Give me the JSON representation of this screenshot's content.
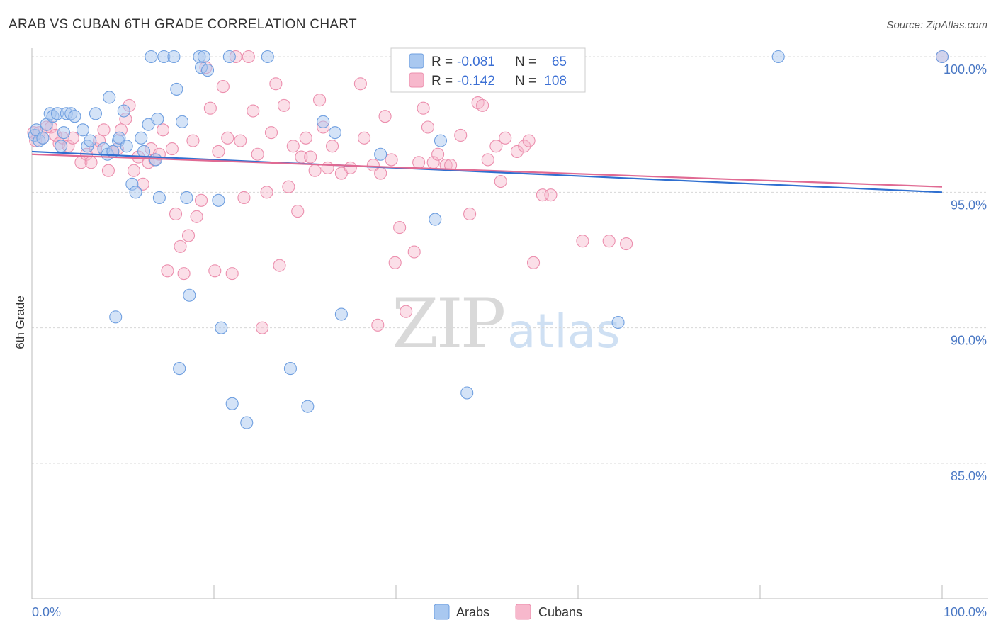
{
  "header": {
    "title": "ARAB VS CUBAN 6TH GRADE CORRELATION CHART",
    "source": "Source: ZipAtlas.com"
  },
  "watermark": {
    "zip": "ZIP",
    "atlas": "atlas"
  },
  "legend": {
    "r_label": "R =",
    "n_label": "N =",
    "arabs": {
      "r": "-0.081",
      "n": "65"
    },
    "cubans": {
      "r": "-0.142",
      "n": "108"
    }
  },
  "bottom_legend": {
    "arabs": "Arabs",
    "cubans": "Cubans"
  },
  "colors": {
    "arabs_fill": "#a9c8f0",
    "arabs_stroke": "#6f9fe0",
    "arabs_line": "#2f6fd0",
    "cubans_fill": "#f7b8cc",
    "cubans_stroke": "#ec8fae",
    "cubans_line": "#e06a93",
    "tick_text": "#4a78c4",
    "grid": "#d8d8d8"
  },
  "chart_data": {
    "type": "scatter",
    "title": "ARAB VS CUBAN 6TH GRADE CORRELATION CHART",
    "xlabel": "",
    "ylabel": "6th Grade",
    "xlim": [
      0,
      100
    ],
    "ylim": [
      80.2,
      100.8
    ],
    "x_tick_labels": [
      "0.0%",
      "100.0%"
    ],
    "y_ticks": [
      85,
      90,
      95,
      100
    ],
    "y_tick_labels": [
      "85.0%",
      "90.0%",
      "95.0%",
      "100.0%"
    ],
    "grid": true,
    "legend_position": "top-center",
    "series": [
      {
        "name": "Arabs",
        "r": -0.081,
        "n": 65,
        "trend": {
          "x": [
            0,
            100
          ],
          "y": [
            96.5,
            95.0
          ]
        },
        "points": [
          [
            0.3,
            97.1
          ],
          [
            0.5,
            97.3
          ],
          [
            0.8,
            96.9
          ],
          [
            1.2,
            97.0
          ],
          [
            1.6,
            97.5
          ],
          [
            2.0,
            97.9
          ],
          [
            2.3,
            97.8
          ],
          [
            2.8,
            97.9
          ],
          [
            3.2,
            96.7
          ],
          [
            3.5,
            97.2
          ],
          [
            3.8,
            97.9
          ],
          [
            4.3,
            97.9
          ],
          [
            4.7,
            97.8
          ],
          [
            5.6,
            97.3
          ],
          [
            6.1,
            96.7
          ],
          [
            6.4,
            96.9
          ],
          [
            7.0,
            97.9
          ],
          [
            7.9,
            96.6
          ],
          [
            8.3,
            96.4
          ],
          [
            8.5,
            98.5
          ],
          [
            8.9,
            96.5
          ],
          [
            9.5,
            96.9
          ],
          [
            9.6,
            97.0
          ],
          [
            10.1,
            98.0
          ],
          [
            10.4,
            96.7
          ],
          [
            11.0,
            95.3
          ],
          [
            11.4,
            95.0
          ],
          [
            12.0,
            97.0
          ],
          [
            12.3,
            96.5
          ],
          [
            12.8,
            97.5
          ],
          [
            13.1,
            100.0
          ],
          [
            13.6,
            96.2
          ],
          [
            13.8,
            97.7
          ],
          [
            14.0,
            94.8
          ],
          [
            14.5,
            100.0
          ],
          [
            15.6,
            100.0
          ],
          [
            15.9,
            98.8
          ],
          [
            16.5,
            97.6
          ],
          [
            17.0,
            94.8
          ],
          [
            17.3,
            91.2
          ],
          [
            18.4,
            100.0
          ],
          [
            18.6,
            99.6
          ],
          [
            18.9,
            100.0
          ],
          [
            19.3,
            99.5
          ],
          [
            20.5,
            94.7
          ],
          [
            20.8,
            90.0
          ],
          [
            21.7,
            100.0
          ],
          [
            22.0,
            87.2
          ],
          [
            23.6,
            86.5
          ],
          [
            25.9,
            100.0
          ],
          [
            28.4,
            88.5
          ],
          [
            30.3,
            87.1
          ],
          [
            32.0,
            97.6
          ],
          [
            33.3,
            97.2
          ],
          [
            34.0,
            90.5
          ],
          [
            38.3,
            96.4
          ],
          [
            44.3,
            94.0
          ],
          [
            44.9,
            96.9
          ],
          [
            47.8,
            87.6
          ],
          [
            57.6,
            100.0
          ],
          [
            64.4,
            90.2
          ],
          [
            82.0,
            100.0
          ],
          [
            100.0,
            100.0
          ],
          [
            16.2,
            88.5
          ],
          [
            9.2,
            90.4
          ]
        ]
      },
      {
        "name": "Cubans",
        "r": -0.142,
        "n": 108,
        "trend": {
          "x": [
            0,
            100
          ],
          "y": [
            96.4,
            95.2
          ]
        },
        "points": [
          [
            0.2,
            97.2
          ],
          [
            0.4,
            96.9
          ],
          [
            0.8,
            97.2
          ],
          [
            1.2,
            97.0
          ],
          [
            1.6,
            97.4
          ],
          [
            2.1,
            97.4
          ],
          [
            2.6,
            97.1
          ],
          [
            3.0,
            96.8
          ],
          [
            3.4,
            97.0
          ],
          [
            4.0,
            96.7
          ],
          [
            4.5,
            97.0
          ],
          [
            5.4,
            96.1
          ],
          [
            6.0,
            96.4
          ],
          [
            6.5,
            96.1
          ],
          [
            7.0,
            96.6
          ],
          [
            7.4,
            96.9
          ],
          [
            7.9,
            97.3
          ],
          [
            8.4,
            95.8
          ],
          [
            8.9,
            96.5
          ],
          [
            9.4,
            96.6
          ],
          [
            9.8,
            97.3
          ],
          [
            10.3,
            97.7
          ],
          [
            10.7,
            98.2
          ],
          [
            11.2,
            95.8
          ],
          [
            11.7,
            96.3
          ],
          [
            12.2,
            95.3
          ],
          [
            12.8,
            96.1
          ],
          [
            13.1,
            96.6
          ],
          [
            13.5,
            96.2
          ],
          [
            14.0,
            96.4
          ],
          [
            14.4,
            97.3
          ],
          [
            14.9,
            92.1
          ],
          [
            15.4,
            96.6
          ],
          [
            15.8,
            94.2
          ],
          [
            16.3,
            93.0
          ],
          [
            16.7,
            92.0
          ],
          [
            17.2,
            93.4
          ],
          [
            17.7,
            96.9
          ],
          [
            18.1,
            94.1
          ],
          [
            18.6,
            94.7
          ],
          [
            19.1,
            99.6
          ],
          [
            19.6,
            98.1
          ],
          [
            20.1,
            92.1
          ],
          [
            20.5,
            96.5
          ],
          [
            21.0,
            98.9
          ],
          [
            21.5,
            97.0
          ],
          [
            22.0,
            92.0
          ],
          [
            22.4,
            100.0
          ],
          [
            22.9,
            96.9
          ],
          [
            23.3,
            94.8
          ],
          [
            23.8,
            100.0
          ],
          [
            24.3,
            98.0
          ],
          [
            24.8,
            96.4
          ],
          [
            25.3,
            90.0
          ],
          [
            25.8,
            95.0
          ],
          [
            26.3,
            97.2
          ],
          [
            26.8,
            99.0
          ],
          [
            27.2,
            92.3
          ],
          [
            27.7,
            98.2
          ],
          [
            28.2,
            95.2
          ],
          [
            28.7,
            96.7
          ],
          [
            29.2,
            94.3
          ],
          [
            29.6,
            96.3
          ],
          [
            30.1,
            97.0
          ],
          [
            30.6,
            96.3
          ],
          [
            31.1,
            95.8
          ],
          [
            31.6,
            98.4
          ],
          [
            32.0,
            97.4
          ],
          [
            32.5,
            95.9
          ],
          [
            33.0,
            96.7
          ],
          [
            34.0,
            95.7
          ],
          [
            35.0,
            95.9
          ],
          [
            36.5,
            97.0
          ],
          [
            37.5,
            96.0
          ],
          [
            38.0,
            90.1
          ],
          [
            38.3,
            95.7
          ],
          [
            38.8,
            97.8
          ],
          [
            39.5,
            96.2
          ],
          [
            40.4,
            93.7
          ],
          [
            41.1,
            90.6
          ],
          [
            42.0,
            92.8
          ],
          [
            42.5,
            96.1
          ],
          [
            43.0,
            98.1
          ],
          [
            43.5,
            97.4
          ],
          [
            44.1,
            96.1
          ],
          [
            44.6,
            96.4
          ],
          [
            45.5,
            96.0
          ],
          [
            46.0,
            96.0
          ],
          [
            47.1,
            97.1
          ],
          [
            48.1,
            94.2
          ],
          [
            49.0,
            98.3
          ],
          [
            49.5,
            98.2
          ],
          [
            50.1,
            96.2
          ],
          [
            51.0,
            96.7
          ],
          [
            51.5,
            95.4
          ],
          [
            52.0,
            97.0
          ],
          [
            53.3,
            96.5
          ],
          [
            54.1,
            96.7
          ],
          [
            54.6,
            96.9
          ],
          [
            55.1,
            92.4
          ],
          [
            56.1,
            94.9
          ],
          [
            57.0,
            94.9
          ],
          [
            60.5,
            93.2
          ],
          [
            63.4,
            93.2
          ],
          [
            65.3,
            93.1
          ],
          [
            39.9,
            92.4
          ],
          [
            100.0,
            100.0
          ],
          [
            36.1,
            99.0
          ]
        ]
      }
    ]
  }
}
